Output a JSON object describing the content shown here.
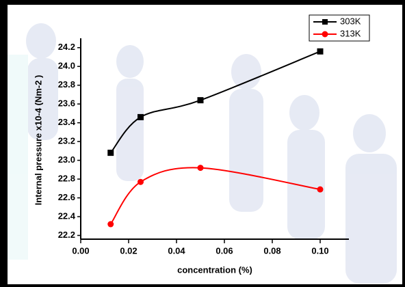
{
  "chart_data": {
    "type": "scatter",
    "xlabel": "concentration (%)",
    "ylabel": "Internal pressure x10-4 (Nm-2 )",
    "xlim": [
      0,
      0.112
    ],
    "ylim": [
      22.16,
      24.3
    ],
    "xticks": [
      {
        "value": 0,
        "label": "0.00"
      },
      {
        "value": 0.02,
        "label": "0.02"
      },
      {
        "value": 0.04,
        "label": "0.04"
      },
      {
        "value": 0.06,
        "label": "0.06"
      },
      {
        "value": 0.08,
        "label": "0.08"
      },
      {
        "value": 0.1,
        "label": "0.10"
      }
    ],
    "yticks": [
      22.2,
      22.4,
      22.6,
      22.8,
      {
        "value": 23,
        "label": "23.0"
      },
      23.2,
      23.4,
      23.6,
      23.8,
      {
        "value": 24,
        "label": "24.0"
      },
      24.2
    ],
    "legend": "top-right",
    "series": [
      {
        "name": "303K",
        "color": "#000000",
        "marker": "square",
        "x": [
          0.0125,
          0.025,
          0.05,
          0.1
        ],
        "values": [
          23.08,
          23.46,
          23.64,
          24.16
        ]
      },
      {
        "name": "313K",
        "color": "#ff0000",
        "marker": "circle",
        "x": [
          0.0125,
          0.025,
          0.05,
          0.1
        ],
        "values": [
          22.32,
          22.77,
          22.92,
          22.69
        ]
      }
    ]
  }
}
